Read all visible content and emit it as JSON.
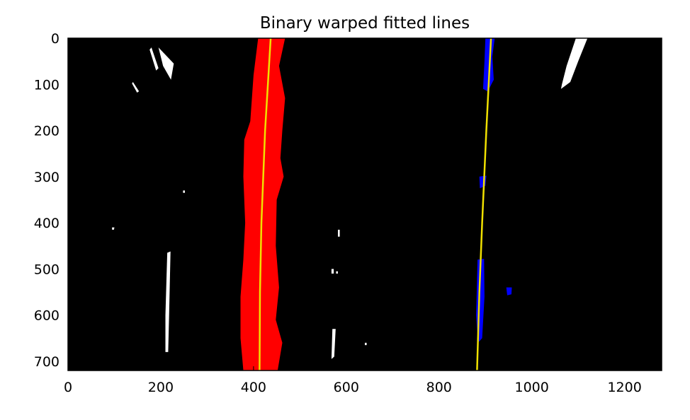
{
  "chart_data": {
    "type": "image",
    "title": "Binary warped fitted lines",
    "xlim": [
      0,
      1280
    ],
    "ylim": [
      720,
      0
    ],
    "x_ticks": [
      0,
      200,
      400,
      600,
      800,
      1000,
      1200
    ],
    "y_ticks": [
      0,
      100,
      200,
      300,
      400,
      500,
      600,
      700
    ],
    "background": "#000000",
    "grid": false,
    "left_lane": {
      "color": "#ff0000",
      "pixel_region": {
        "left_edge": [
          [
            410,
            0
          ],
          [
            400,
            80
          ],
          [
            393,
            180
          ],
          [
            380,
            220
          ],
          [
            378,
            300
          ],
          [
            382,
            400
          ],
          [
            378,
            480
          ],
          [
            372,
            560
          ],
          [
            372,
            650
          ],
          [
            378,
            720
          ]
        ],
        "right_edge": [
          [
            468,
            0
          ],
          [
            455,
            60
          ],
          [
            468,
            130
          ],
          [
            462,
            200
          ],
          [
            458,
            260
          ],
          [
            465,
            300
          ],
          [
            450,
            350
          ],
          [
            448,
            450
          ],
          [
            455,
            540
          ],
          [
            448,
            610
          ],
          [
            462,
            660
          ],
          [
            452,
            720
          ]
        ]
      },
      "fit_line": [
        [
          437,
          0
        ],
        [
          425,
          200
        ],
        [
          417,
          400
        ],
        [
          414,
          550
        ],
        [
          413,
          720
        ]
      ]
    },
    "right_lane": {
      "color": "#0000ff",
      "pixel_blobs": [
        [
          [
            900,
            0
          ],
          [
            920,
            0
          ],
          [
            915,
            40
          ],
          [
            918,
            90
          ],
          [
            905,
            115
          ],
          [
            895,
            110
          ],
          [
            898,
            50
          ]
        ],
        [
          [
            887,
            300
          ],
          [
            902,
            298
          ],
          [
            900,
            320
          ],
          [
            888,
            325
          ]
        ],
        [
          [
            883,
            480
          ],
          [
            897,
            478
          ],
          [
            898,
            560
          ],
          [
            893,
            650
          ],
          [
            884,
            660
          ],
          [
            880,
            600
          ],
          [
            882,
            520
          ]
        ],
        [
          [
            945,
            540
          ],
          [
            957,
            540
          ],
          [
            956,
            555
          ],
          [
            947,
            557
          ]
        ]
      ],
      "fit_line": [
        [
          912,
          0
        ],
        [
          902,
          200
        ],
        [
          893,
          400
        ],
        [
          887,
          550
        ],
        [
          882,
          720
        ]
      ]
    },
    "fit_line_color": "#f0e000",
    "white_pixels": [
      [
        [
          180,
          20
        ],
        [
          195,
          65
        ],
        [
          190,
          70
        ],
        [
          176,
          25
        ]
      ],
      [
        [
          195,
          20
        ],
        [
          228,
          55
        ],
        [
          222,
          90
        ],
        [
          205,
          60
        ]
      ],
      [
        [
          140,
          95
        ],
        [
          153,
          115
        ],
        [
          149,
          118
        ],
        [
          138,
          98
        ]
      ],
      [
        [
          1095,
          0
        ],
        [
          1120,
          0
        ],
        [
          1100,
          50
        ],
        [
          1083,
          95
        ],
        [
          1063,
          110
        ],
        [
          1065,
          100
        ],
        [
          1075,
          60
        ]
      ],
      [
        [
          214,
          465
        ],
        [
          221,
          462
        ],
        [
          218,
          600
        ],
        [
          216,
          680
        ],
        [
          210,
          680
        ],
        [
          210,
          600
        ]
      ],
      [
        [
          570,
          630
        ],
        [
          577,
          630
        ],
        [
          574,
          690
        ],
        [
          568,
          695
        ]
      ],
      [
        [
          582,
          415
        ],
        [
          586,
          415
        ],
        [
          586,
          430
        ],
        [
          582,
          430
        ]
      ],
      [
        [
          568,
          500
        ],
        [
          573,
          500
        ],
        [
          573,
          510
        ],
        [
          568,
          510
        ]
      ],
      [
        [
          95,
          410
        ],
        [
          100,
          410
        ],
        [
          99,
          415
        ],
        [
          95,
          415
        ]
      ],
      [
        [
          248,
          330
        ],
        [
          252,
          330
        ],
        [
          252,
          335
        ],
        [
          248,
          335
        ]
      ],
      [
        [
          640,
          660
        ],
        [
          644,
          660
        ],
        [
          644,
          665
        ],
        [
          640,
          665
        ]
      ],
      [
        [
          578,
          505
        ],
        [
          582,
          505
        ],
        [
          582,
          510
        ],
        [
          578,
          510
        ]
      ]
    ]
  }
}
